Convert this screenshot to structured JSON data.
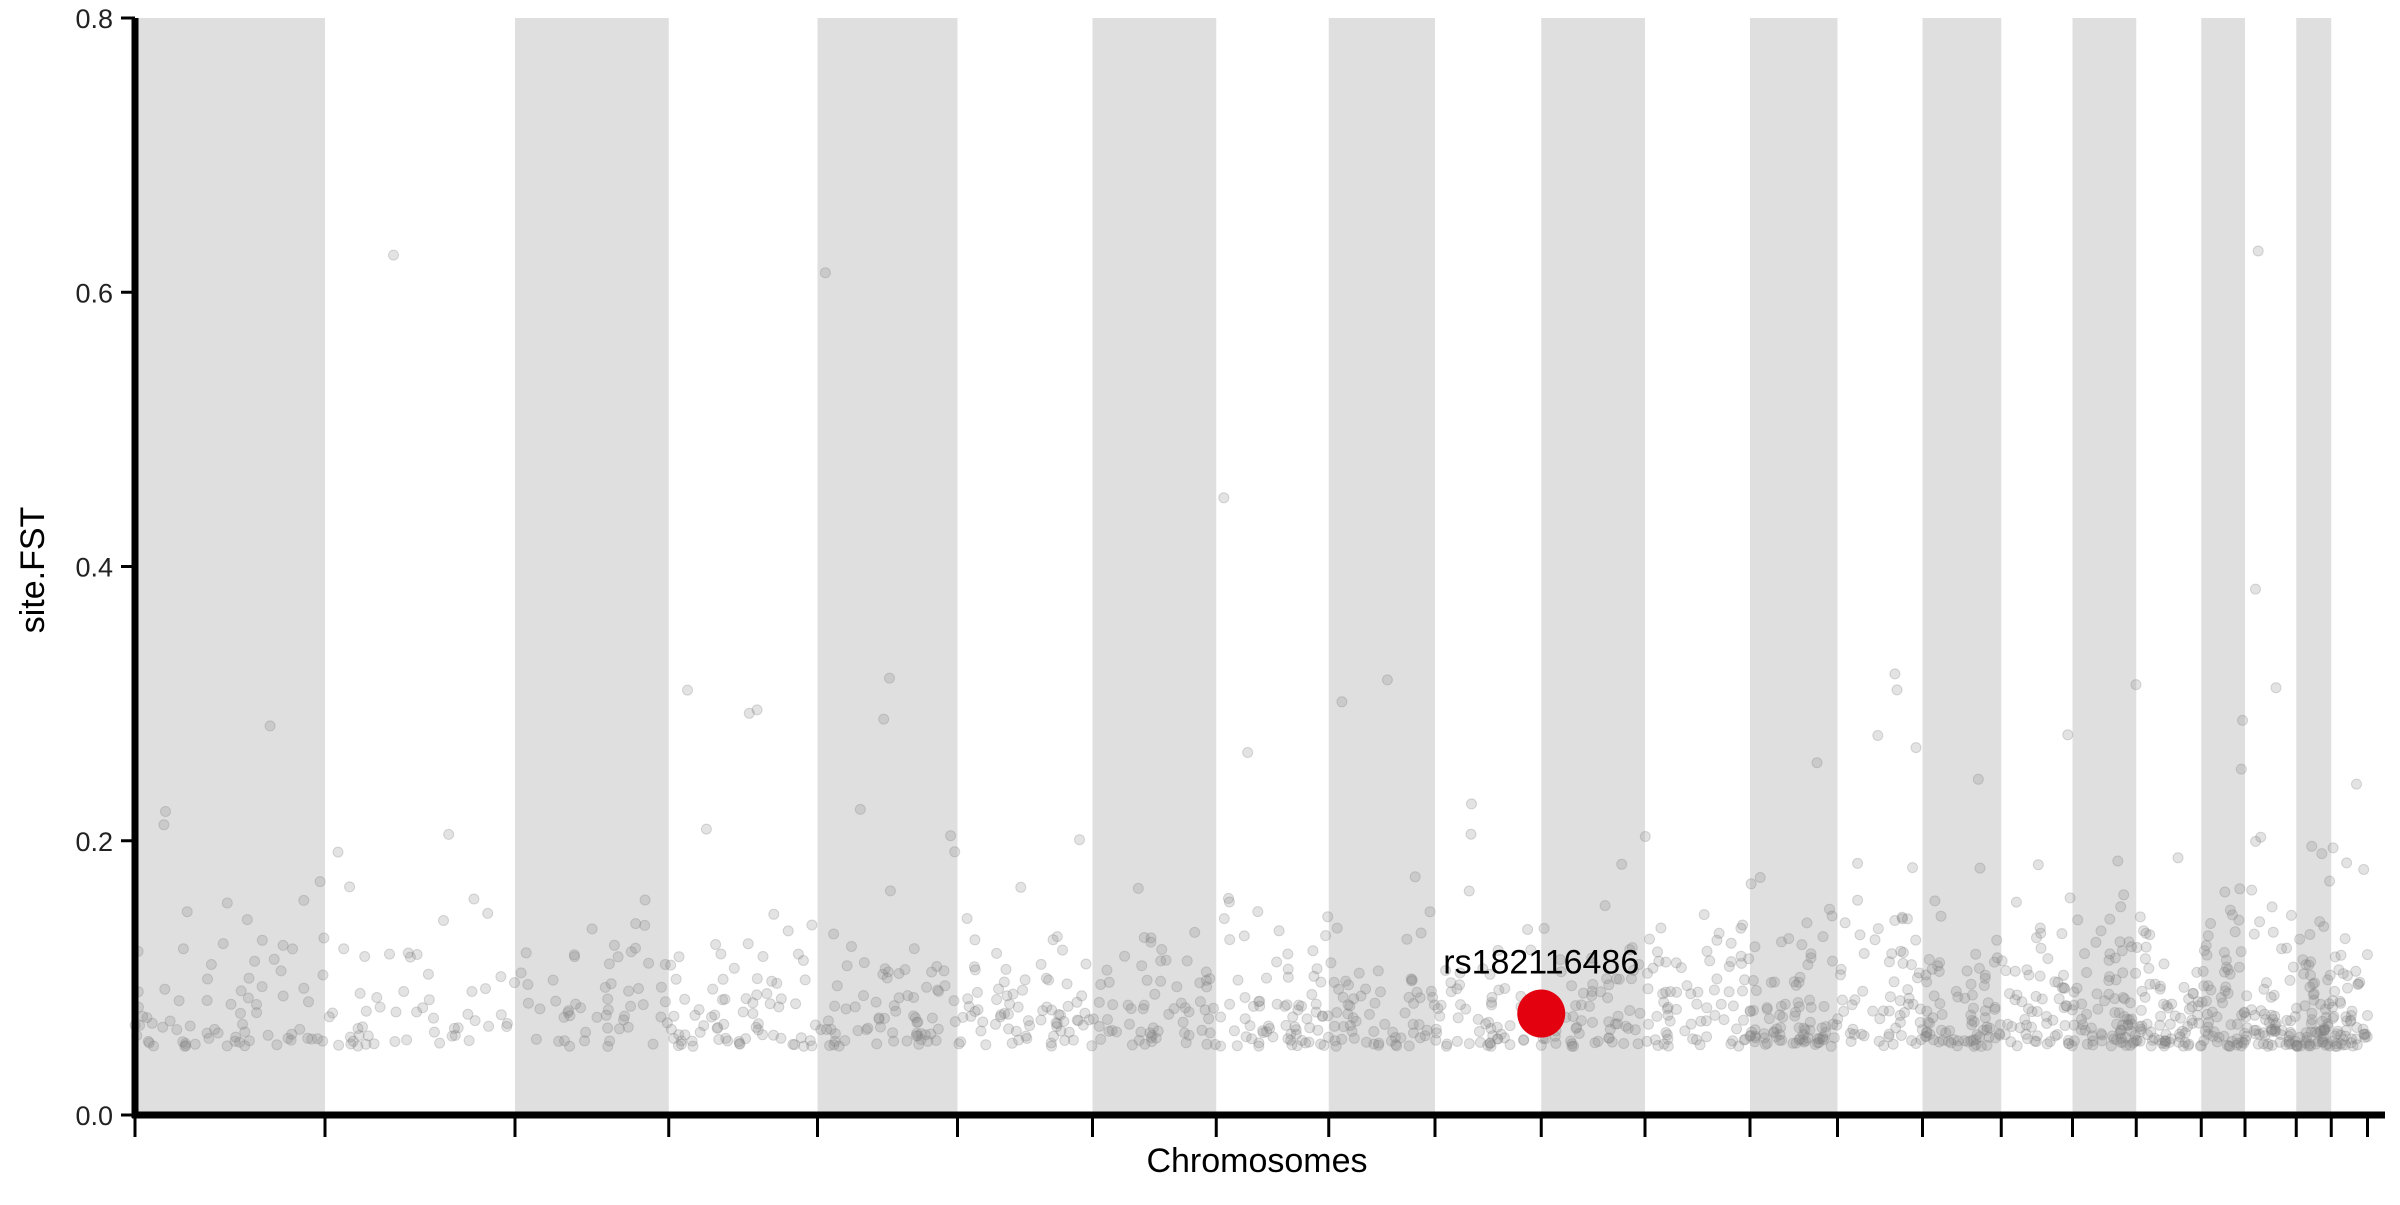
{
  "chart_data": {
    "type": "scatter",
    "title": "",
    "xlabel": "Chromosomes",
    "ylabel": "site.FST",
    "ylim": [
      0,
      0.8
    ],
    "yticks": [
      "0.0",
      "0.2",
      "0.4",
      "0.6",
      "0.8"
    ],
    "ytick_values": [
      0,
      0.2,
      0.4,
      0.6,
      0.8
    ],
    "xlim": [
      0,
      18
    ],
    "bands": [
      [
        0,
        1.52
      ],
      [
        3.04,
        4.27
      ],
      [
        5.46,
        6.58
      ],
      [
        7.66,
        8.65
      ],
      [
        9.55,
        10.4
      ],
      [
        11.25,
        12.08
      ],
      [
        12.92,
        13.62
      ],
      [
        14.3,
        14.93
      ],
      [
        15.5,
        16.01
      ],
      [
        16.53,
        16.88
      ],
      [
        17.29,
        17.57
      ]
    ],
    "boundaries": [
      0,
      1.52,
      3.04,
      4.27,
      5.46,
      6.58,
      7.66,
      8.65,
      9.55,
      10.4,
      11.25,
      12.08,
      12.92,
      13.62,
      14.3,
      14.93,
      15.5,
      16.01,
      16.53,
      16.88,
      17.29,
      17.57,
      17.86
    ],
    "background_snp_count": 1500,
    "highlight": {
      "label": "rs182116486",
      "x": 11.25,
      "y": 0.074,
      "color": "#e3000f"
    },
    "point_color": "#808080",
    "band_color": "#dfdfdf",
    "grid": false,
    "legend": "none"
  }
}
